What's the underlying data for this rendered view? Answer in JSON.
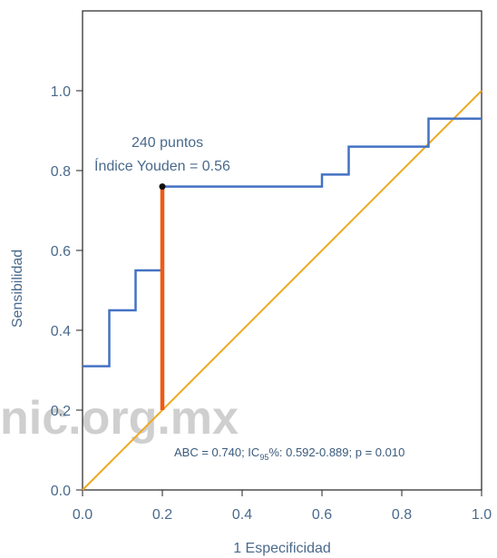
{
  "chart_data": {
    "type": "line",
    "title": "",
    "xlabel": "1 Especificidad",
    "ylabel": "Sensibilidad",
    "xlim": [
      0,
      1.0
    ],
    "ylim": [
      0,
      1.0
    ],
    "xticks": [
      "0.0",
      "0.2",
      "0.4",
      "0.6",
      "0.8",
      "1.0"
    ],
    "yticks": [
      "0.0",
      "0.2",
      "0.4",
      "0.6",
      "0.8",
      "1.0"
    ],
    "grid": false,
    "series": [
      {
        "color": "#4472c4",
        "points": [
          [
            0.0,
            0.31
          ],
          [
            0.067,
            0.31
          ],
          [
            0.067,
            0.45
          ],
          [
            0.133,
            0.45
          ],
          [
            0.133,
            0.55
          ],
          [
            0.2,
            0.55
          ],
          [
            0.2,
            0.76
          ],
          [
            0.6,
            0.76
          ],
          [
            0.6,
            0.79
          ],
          [
            0.667,
            0.79
          ],
          [
            0.667,
            0.86
          ],
          [
            0.867,
            0.86
          ],
          [
            0.867,
            0.93
          ],
          [
            1.0,
            0.93
          ]
        ]
      },
      {
        "color": "#f0a820",
        "points": [
          [
            0.0,
            0.0
          ],
          [
            1.0,
            1.0
          ]
        ]
      }
    ],
    "youden_line": {
      "x": 0.2,
      "y_from": 0.2,
      "y_to": 0.76,
      "color": "#f05a14"
    },
    "cutoff_point": {
      "x": 0.2,
      "y": 0.76
    },
    "annotations": {
      "cutoff_line1": "240 puntos",
      "cutoff_line2": "Índice Youden = 0.56",
      "auc_prefix": "ABC = 0.740; IC",
      "auc_subscript": "95",
      "auc_suffix": "%: 0.592-0.889; p = 0.010"
    }
  },
  "watermark": "nic.org.mx"
}
